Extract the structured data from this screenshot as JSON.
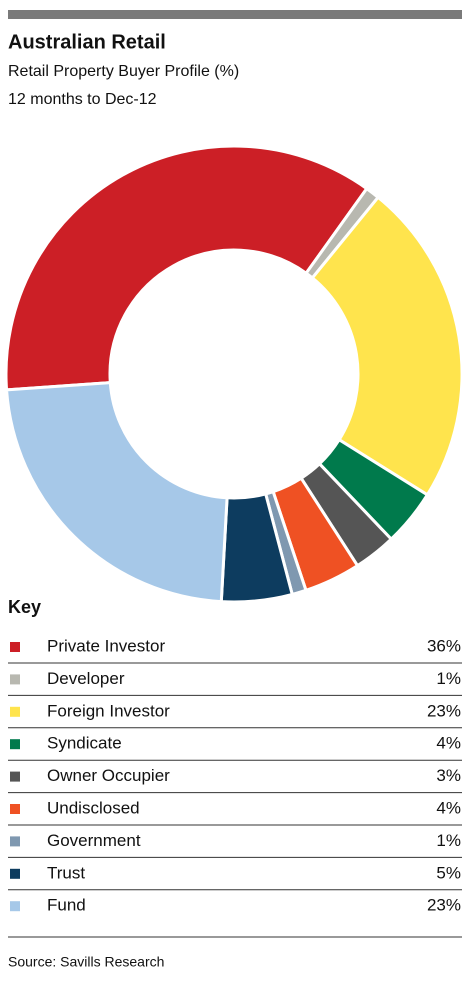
{
  "chart_data": {
    "type": "pie",
    "title": "Australian Retail",
    "subtitle": [
      "Retail Property Buyer Profile (%)",
      "12 months to Dec-12"
    ],
    "categories": [
      "Private Investor",
      "Developer",
      "Foreign Investor",
      "Syndicate",
      "Owner Occupier",
      "Undisclosed",
      "Government",
      "Trust",
      "Fund"
    ],
    "values": [
      36,
      1,
      23,
      4,
      3,
      4,
      1,
      5,
      23
    ],
    "value_labels": [
      "36%",
      "1%",
      "23%",
      "4%",
      "3%",
      "4%",
      "1%",
      "5%",
      "23%"
    ],
    "colors": [
      "#cc1f26",
      "#b8b8b0",
      "#ffe44d",
      "#007a4c",
      "#555555",
      "#ef5123",
      "#7f98b0",
      "#0d3c5f",
      "#a6c8e8"
    ],
    "legend_title": "Key",
    "source": "Source: Savills Research"
  }
}
